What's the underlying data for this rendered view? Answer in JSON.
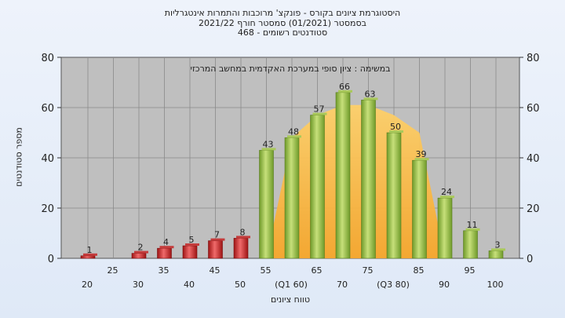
{
  "header": {
    "line1": "היסטוגרמת ציונים בקורס - פונקצ' מרוכבות והתמרות אינטגרליות",
    "line2": "בסמסטר  (01/2021)  סמסטר חורף  2021/22",
    "line3": "סטודנטים רשומים - 468"
  },
  "colors": {
    "low_bar": "#d92020",
    "high_bar": "#9cc04a",
    "area_fill": "#fbbf4f",
    "plot_bg": "#bfbfbf",
    "gridline": "#8a8a8a"
  },
  "chart_data": {
    "type": "bar",
    "title": "",
    "xlabel": "טווח ציונים",
    "ylabel": "מספר סטודנטים",
    "ylim": [
      0,
      80
    ],
    "yticks": [
      0,
      20,
      40,
      60,
      80
    ],
    "grid": true,
    "annotation": "במשימה : ציון סופי במערכת האקדמית במחשב המרכזי",
    "x_tick_labels": [
      "20",
      "25",
      "30",
      "35",
      "40",
      "45",
      "50",
      "55",
      "(Q1 60)",
      "65",
      "70",
      "75",
      "(Q3 80)",
      "85",
      "90",
      "95",
      "100"
    ],
    "values": [
      1,
      0,
      2,
      4,
      5,
      7,
      8,
      43,
      48,
      57,
      66,
      63,
      50,
      39,
      24,
      11,
      3
    ],
    "data_labels": [
      "1",
      "",
      "2",
      "4",
      "5",
      "7",
      "8",
      "43",
      "48",
      "57",
      "66",
      "63",
      "50",
      "39",
      "24",
      "11",
      "3"
    ],
    "fail_threshold_index": 7,
    "interquartile_area": {
      "values": [
        0,
        48,
        57,
        61,
        61,
        57,
        50,
        0
      ],
      "from_index": 7,
      "to_index": 14
    }
  }
}
